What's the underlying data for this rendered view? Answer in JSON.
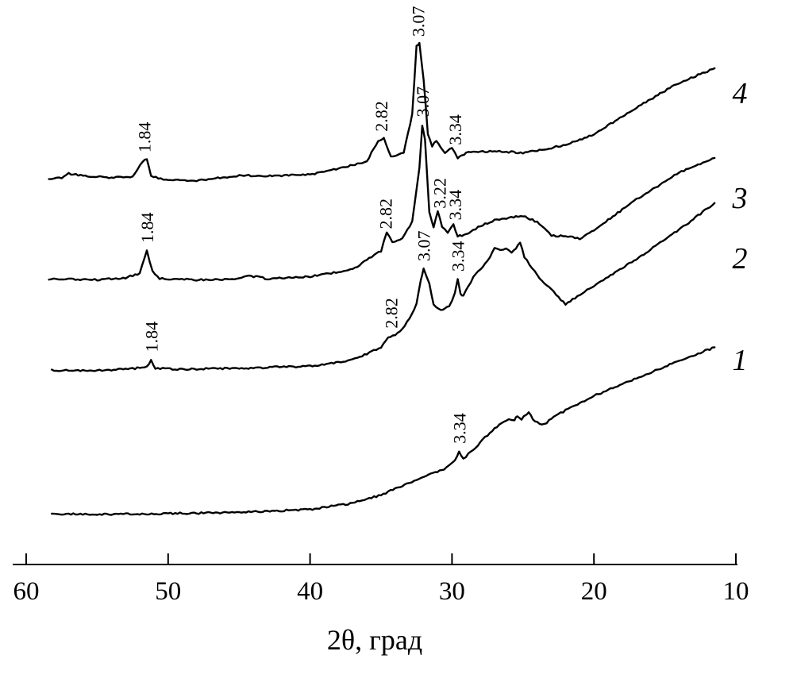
{
  "chart_data": {
    "type": "line",
    "title": "",
    "xlabel": "2θ, град",
    "ylabel": "",
    "xlim": [
      60,
      10
    ],
    "x_ticks": [
      "60",
      "50",
      "40",
      "30",
      "20",
      "10"
    ],
    "x_tick_values": [
      60,
      50,
      40,
      30,
      20,
      10
    ],
    "y_ticks_shown": false,
    "grid": false,
    "series": [
      {
        "name": "1",
        "points": [
          [
            58.2,
            0.04
          ],
          [
            55,
            0.03
          ],
          [
            50,
            0.04
          ],
          [
            45,
            0.05
          ],
          [
            40,
            0.08
          ],
          [
            37,
            0.14
          ],
          [
            35,
            0.22
          ],
          [
            33,
            0.34
          ],
          [
            31.5,
            0.42
          ],
          [
            30.4,
            0.48
          ],
          [
            30,
            0.53
          ],
          [
            29.8,
            0.55
          ],
          [
            29.5,
            0.64
          ],
          [
            29.2,
            0.57
          ],
          [
            28.5,
            0.66
          ],
          [
            27.5,
            0.8
          ],
          [
            26.5,
            0.92
          ],
          [
            26,
            0.95
          ],
          [
            25.6,
            0.94
          ],
          [
            25.4,
            0.99
          ],
          [
            25.1,
            0.95
          ],
          [
            24.8,
            1.0
          ],
          [
            24.6,
            1.02
          ],
          [
            24.3,
            0.96
          ],
          [
            24,
            0.92
          ],
          [
            23.5,
            0.9
          ],
          [
            23,
            0.96
          ],
          [
            22,
            1.04
          ],
          [
            20,
            1.18
          ],
          [
            17,
            1.35
          ],
          [
            14,
            1.52
          ],
          [
            11.5,
            1.65
          ]
        ],
        "peaks": [
          {
            "x": 29.5,
            "label": "3.34"
          }
        ]
      },
      {
        "name": "2",
        "points": [
          [
            58.2,
            0.02
          ],
          [
            55,
            0.02
          ],
          [
            53,
            0.03
          ],
          [
            51.5,
            0.05
          ],
          [
            51.2,
            0.12
          ],
          [
            50.9,
            0.04
          ],
          [
            49,
            0.03
          ],
          [
            45,
            0.04
          ],
          [
            40,
            0.06
          ],
          [
            37,
            0.12
          ],
          [
            35,
            0.24
          ],
          [
            34.5,
            0.34
          ],
          [
            34,
            0.36
          ],
          [
            33.5,
            0.42
          ],
          [
            33,
            0.52
          ],
          [
            32.5,
            0.66
          ],
          [
            32.2,
            0.9
          ],
          [
            32,
            1.0
          ],
          [
            31.6,
            0.86
          ],
          [
            31.3,
            0.66
          ],
          [
            30.8,
            0.6
          ],
          [
            30.2,
            0.64
          ],
          [
            29.8,
            0.76
          ],
          [
            29.6,
            0.9
          ],
          [
            29.4,
            0.76
          ],
          [
            29.2,
            0.74
          ],
          [
            28.5,
            0.92
          ],
          [
            27.5,
            1.08
          ],
          [
            27,
            1.2
          ],
          [
            26.6,
            1.18
          ],
          [
            26.2,
            1.2
          ],
          [
            25.8,
            1.16
          ],
          [
            25.5,
            1.2
          ],
          [
            25.2,
            1.26
          ],
          [
            24.9,
            1.12
          ],
          [
            24,
            0.94
          ],
          [
            23,
            0.8
          ],
          [
            22,
            0.66
          ],
          [
            20,
            0.84
          ],
          [
            17,
            1.1
          ],
          [
            14,
            1.38
          ],
          [
            11.5,
            1.64
          ]
        ],
        "peaks": [
          {
            "x": 51.2,
            "label": "1.84"
          },
          {
            "x": 34.3,
            "label": "2.82"
          },
          {
            "x": 32.0,
            "label": "3.07"
          },
          {
            "x": 29.6,
            "label": "3.34"
          }
        ]
      },
      {
        "name": "3",
        "points": [
          [
            58.4,
            0.03
          ],
          [
            55,
            0.02
          ],
          [
            53,
            0.04
          ],
          [
            52,
            0.08
          ],
          [
            51.5,
            0.3
          ],
          [
            51.1,
            0.1
          ],
          [
            50.6,
            0.03
          ],
          [
            48,
            0.02
          ],
          [
            45,
            0.03
          ],
          [
            44.3,
            0.06
          ],
          [
            43,
            0.03
          ],
          [
            40,
            0.05
          ],
          [
            37,
            0.12
          ],
          [
            35,
            0.3
          ],
          [
            34.6,
            0.48
          ],
          [
            34.2,
            0.38
          ],
          [
            33.5,
            0.42
          ],
          [
            32.8,
            0.58
          ],
          [
            32.3,
            1.1
          ],
          [
            32.1,
            1.52
          ],
          [
            31.9,
            1.38
          ],
          [
            31.6,
            0.68
          ],
          [
            31.3,
            0.52
          ],
          [
            31,
            0.68
          ],
          [
            30.7,
            0.54
          ],
          [
            30.3,
            0.48
          ],
          [
            29.9,
            0.56
          ],
          [
            29.6,
            0.44
          ],
          [
            29,
            0.46
          ],
          [
            28,
            0.54
          ],
          [
            27,
            0.6
          ],
          [
            25,
            0.64
          ],
          [
            24,
            0.58
          ],
          [
            23,
            0.45
          ],
          [
            22,
            0.44
          ],
          [
            21,
            0.42
          ],
          [
            20,
            0.5
          ],
          [
            17,
            0.8
          ],
          [
            14,
            1.06
          ],
          [
            11.5,
            1.2
          ]
        ],
        "peaks": [
          {
            "x": 51.5,
            "label": "1.84"
          },
          {
            "x": 34.7,
            "label": "2.82"
          },
          {
            "x": 32.1,
            "label": "3.07"
          },
          {
            "x": 30.9,
            "label": "3.22"
          },
          {
            "x": 29.8,
            "label": "3.34"
          }
        ]
      },
      {
        "name": "4",
        "points": [
          [
            58.4,
            0.02
          ],
          [
            57.5,
            0.04
          ],
          [
            57,
            0.08
          ],
          [
            56,
            0.06
          ],
          [
            54,
            0.04
          ],
          [
            52.5,
            0.05
          ],
          [
            51.8,
            0.2
          ],
          [
            51.5,
            0.22
          ],
          [
            51.2,
            0.05
          ],
          [
            50,
            0.02
          ],
          [
            48,
            0.01
          ],
          [
            45,
            0.06
          ],
          [
            42,
            0.06
          ],
          [
            40,
            0.07
          ],
          [
            37,
            0.16
          ],
          [
            36,
            0.2
          ],
          [
            35.2,
            0.4
          ],
          [
            34.8,
            0.42
          ],
          [
            34.3,
            0.24
          ],
          [
            33.4,
            0.28
          ],
          [
            32.8,
            0.66
          ],
          [
            32.5,
            1.32
          ],
          [
            32.3,
            1.34
          ],
          [
            32,
            1.0
          ],
          [
            31.7,
            0.46
          ],
          [
            31.4,
            0.35
          ],
          [
            31.1,
            0.4
          ],
          [
            30.5,
            0.28
          ],
          [
            30,
            0.33
          ],
          [
            29.6,
            0.23
          ],
          [
            29,
            0.28
          ],
          [
            27,
            0.3
          ],
          [
            25,
            0.28
          ],
          [
            24,
            0.3
          ],
          [
            22,
            0.36
          ],
          [
            20,
            0.46
          ],
          [
            17,
            0.72
          ],
          [
            14,
            0.96
          ],
          [
            11.5,
            1.1
          ]
        ],
        "peaks": [
          {
            "x": 51.7,
            "label": "1.84"
          },
          {
            "x": 35.0,
            "label": "2.82"
          },
          {
            "x": 32.4,
            "label": "3.07"
          },
          {
            "x": 29.8,
            "label": "3.34"
          }
        ]
      }
    ]
  }
}
